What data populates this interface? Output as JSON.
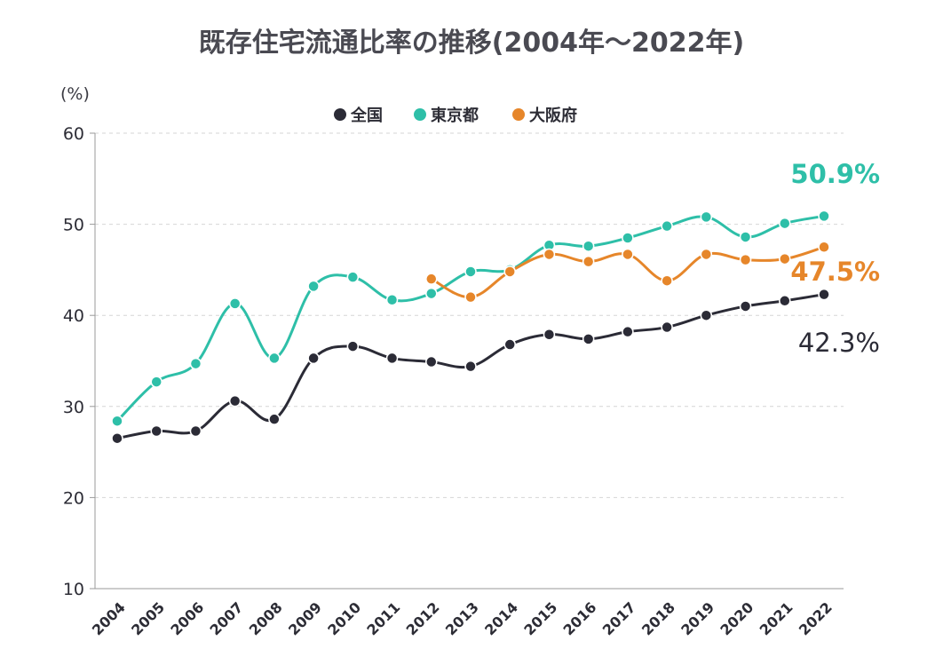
{
  "chart_data": {
    "type": "line",
    "title": "既存住宅流通比率の推移(2004年～2022年)",
    "ylabel": "(%)",
    "xlabel": "",
    "ylim": [
      10,
      60
    ],
    "yticks": [
      "10",
      "20",
      "30",
      "40",
      "50",
      "60"
    ],
    "grid": true,
    "legend_position": "top-center",
    "categories": [
      "2004",
      "2005",
      "2006",
      "2007",
      "2008",
      "2009",
      "2010",
      "2011",
      "2012",
      "2013",
      "2014",
      "2015",
      "2016",
      "2017",
      "2018",
      "2019",
      "2020",
      "2021",
      "2022"
    ],
    "series": [
      {
        "name": "全国",
        "color": "#2b2b36",
        "values": [
          26.5,
          27.3,
          27.3,
          30.6,
          28.6,
          35.3,
          36.6,
          35.3,
          34.9,
          34.4,
          36.8,
          37.9,
          37.4,
          38.2,
          38.7,
          40.0,
          41.0,
          41.6,
          42.3
        ],
        "end_label": "42.3%"
      },
      {
        "name": "東京都",
        "color": "#2ebfa8",
        "values": [
          28.4,
          32.7,
          34.7,
          41.3,
          35.3,
          43.2,
          44.2,
          41.7,
          42.4,
          44.8,
          45.0,
          47.7,
          47.6,
          48.5,
          49.8,
          50.8,
          48.6,
          50.1,
          50.9
        ],
        "end_label": "50.9%"
      },
      {
        "name": "大阪府",
        "color": "#e6862a",
        "values": [
          null,
          null,
          null,
          null,
          null,
          null,
          null,
          null,
          44.0,
          42.0,
          44.8,
          46.7,
          45.9,
          46.7,
          43.8,
          46.7,
          46.1,
          46.2,
          47.5
        ],
        "end_label": "47.5%"
      }
    ]
  }
}
